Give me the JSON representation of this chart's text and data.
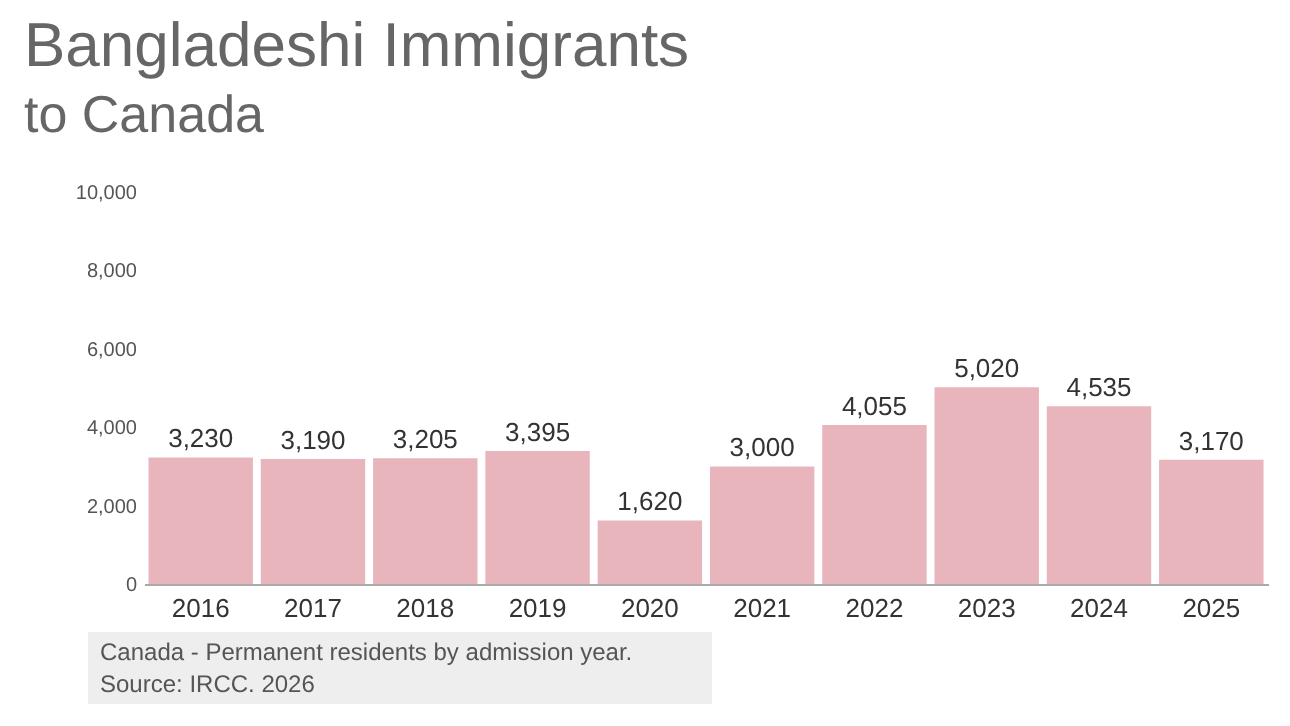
{
  "chart_data": {
    "type": "bar",
    "title": "Bangladeshi Immigrants",
    "subtitle": "to Canada",
    "categories": [
      "2016",
      "2017",
      "2018",
      "2019",
      "2020",
      "2021",
      "2022",
      "2023",
      "2024",
      "2025"
    ],
    "values": [
      3230,
      3190,
      3205,
      3395,
      1620,
      3000,
      4055,
      5020,
      4535,
      3170
    ],
    "value_labels": [
      "3,230",
      "3,190",
      "3,205",
      "3,395",
      "1,620",
      "3,000",
      "4,055",
      "5,020",
      "4,535",
      "3,170"
    ],
    "color": "#e8b5bd",
    "ylim": [
      0,
      10000
    ],
    "yticks": [
      0,
      {
        "value": 2000,
        "label": "2,000"
      },
      {
        "value": 4000,
        "label": "4,000"
      },
      {
        "value": 6000,
        "label": "6,000"
      },
      {
        "value": 8000,
        "label": "8,000"
      },
      {
        "value": 10000,
        "label": "10,000"
      }
    ],
    "annotations": [
      "Canada - Permanent residents by admission year.",
      "Source: IRCC. 2026"
    ]
  }
}
